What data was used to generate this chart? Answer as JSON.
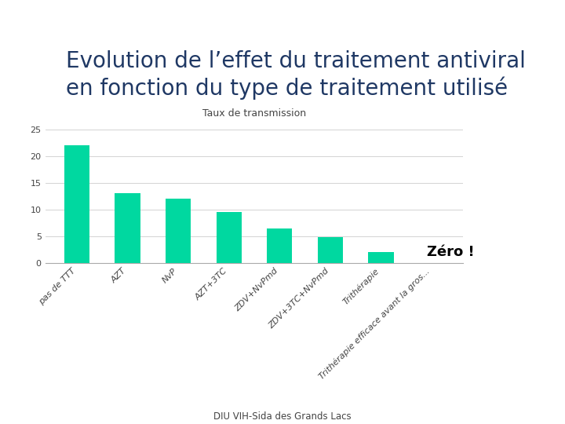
{
  "title_line1": "Evolution de l’effet du traitement antiviral",
  "title_line2": "en fonction du type de traitement utilisé",
  "ylabel": "Taux de transmission",
  "categories": [
    "pas de TTT",
    "AZT",
    "NvP",
    "AZT+3TC",
    "ZDV+NvPmd",
    "ZDV+3TC+NvPmd",
    "Trithérapie",
    "Trithérapie efficace avant la gros..."
  ],
  "values": [
    22,
    13.0,
    12.0,
    9.5,
    6.5,
    4.8,
    2.0,
    0
  ],
  "bar_color": "#00D8A0",
  "background_color": "#FFFFFF",
  "yticks": [
    0,
    5,
    10,
    15,
    20,
    25
  ],
  "ylim": [
    0,
    27
  ],
  "annotation_text": "Zéro !",
  "footer_text": "DIU VIH-Sida des Grands Lacs",
  "title_color": "#1F3864",
  "title_fontsize": 20,
  "ylabel_fontsize": 9,
  "tick_fontsize": 8,
  "annotation_fontsize": 13,
  "grid_color": "#CCCCCC",
  "tick_color": "#444444"
}
